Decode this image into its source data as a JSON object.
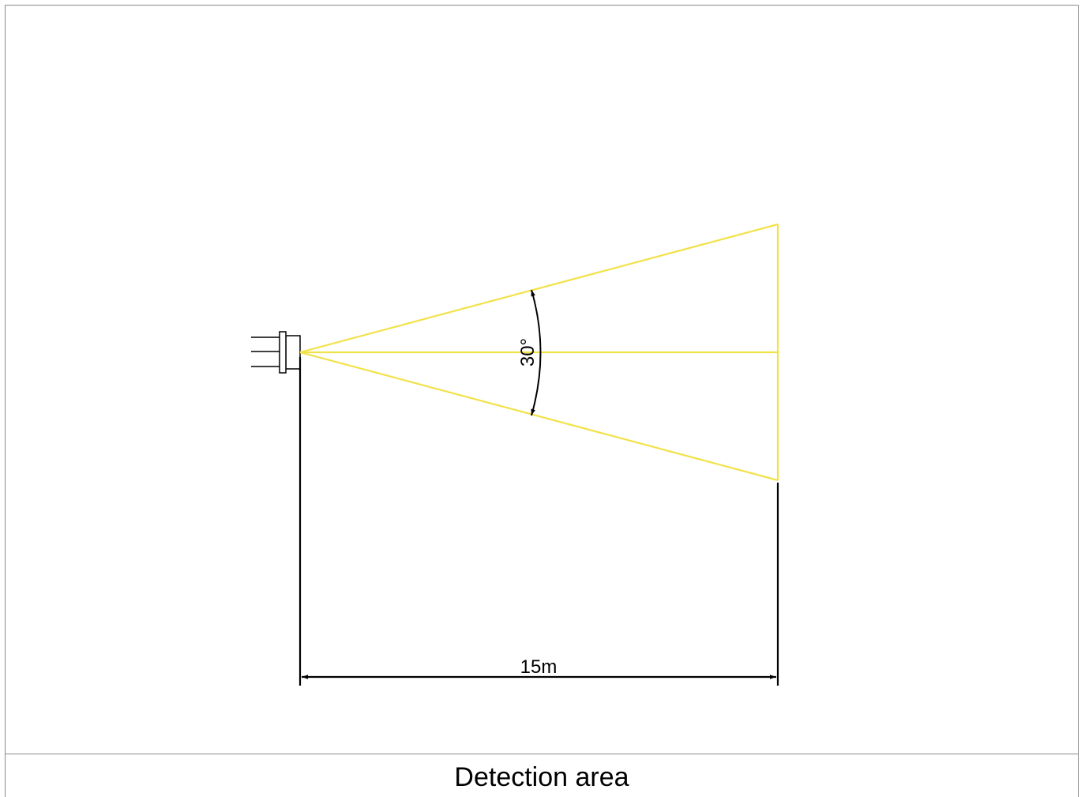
{
  "diagram": {
    "angle_label": "30°",
    "distance_label": "15m",
    "caption": "Detection area",
    "colors": {
      "beam": "#f2e24a",
      "dimension": "#000000",
      "frame": "#8a8a8a"
    }
  }
}
